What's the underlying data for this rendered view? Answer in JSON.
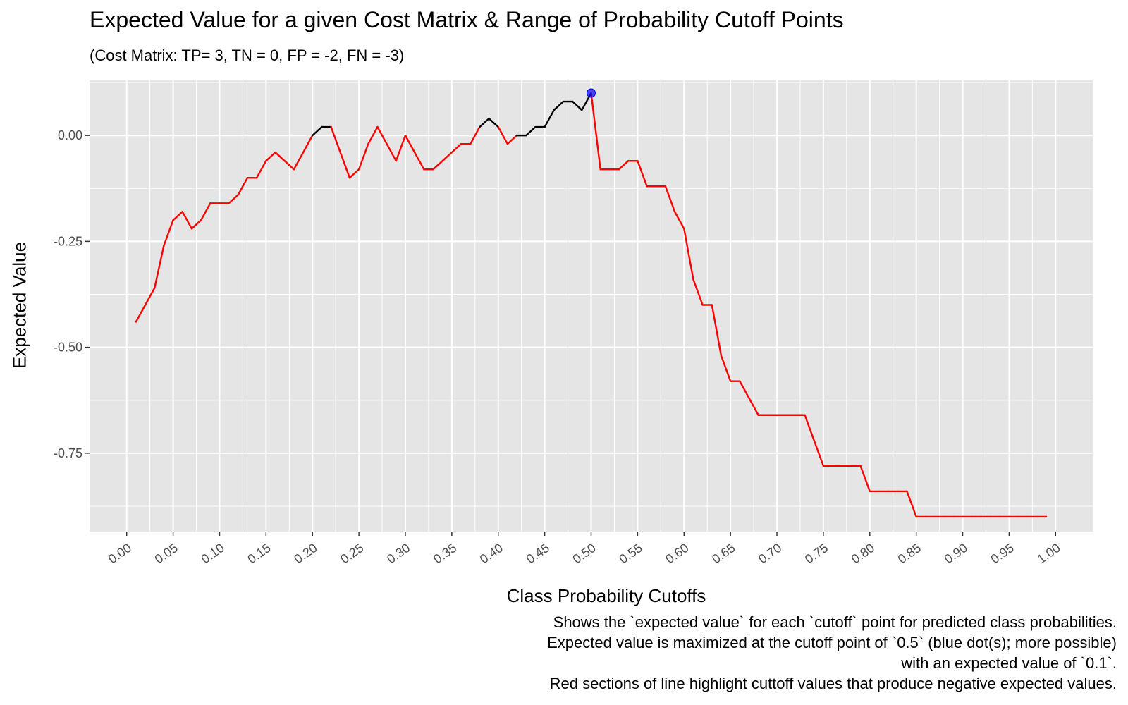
{
  "chart_data": {
    "type": "line",
    "title": "Expected Value for a given Cost Matrix & Range of Probability Cutoff Points",
    "subtitle": "(Cost Matrix: TP= 3, TN = 0, FP = -2, FN = -3)",
    "xlabel": "Class Probability Cutoffs",
    "ylabel": "Expected Value",
    "xlim": [
      -0.04,
      1.04
    ],
    "ylim": [
      -0.935,
      0.13
    ],
    "x_ticks": [
      "0.00",
      "0.05",
      "0.10",
      "0.15",
      "0.20",
      "0.25",
      "0.30",
      "0.35",
      "0.40",
      "0.45",
      "0.50",
      "0.55",
      "0.60",
      "0.65",
      "0.70",
      "0.75",
      "0.80",
      "0.85",
      "0.90",
      "0.95",
      "1.00"
    ],
    "y_ticks": [
      "0.00",
      "-0.25",
      "-0.50",
      "-0.75"
    ],
    "y_tick_values": [
      0,
      -0.25,
      -0.5,
      -0.75
    ],
    "grid": true,
    "series": [
      {
        "x": [
          0.01,
          0.02,
          0.03,
          0.04,
          0.05,
          0.06,
          0.07,
          0.08,
          0.09,
          0.1,
          0.11,
          0.12,
          0.13,
          0.14,
          0.15,
          0.16,
          0.17,
          0.18,
          0.19,
          0.2,
          0.21,
          0.22,
          0.23,
          0.24,
          0.25,
          0.26,
          0.27,
          0.28,
          0.29,
          0.3,
          0.31,
          0.32,
          0.33,
          0.34,
          0.35,
          0.36,
          0.37,
          0.38,
          0.39,
          0.4,
          0.41,
          0.42,
          0.43,
          0.44,
          0.45,
          0.46,
          0.47,
          0.48,
          0.49,
          0.5,
          0.51,
          0.52,
          0.53,
          0.54,
          0.55,
          0.56,
          0.57,
          0.58,
          0.59,
          0.6,
          0.61,
          0.62,
          0.63,
          0.64,
          0.65,
          0.66,
          0.67,
          0.68,
          0.69,
          0.7,
          0.71,
          0.72,
          0.73,
          0.74,
          0.75,
          0.76,
          0.77,
          0.78,
          0.79,
          0.8,
          0.81,
          0.82,
          0.83,
          0.84,
          0.85,
          0.86,
          0.87,
          0.88,
          0.89,
          0.9,
          0.91,
          0.92,
          0.93,
          0.94,
          0.95,
          0.96,
          0.97,
          0.98,
          0.99
        ],
        "values": [
          -0.44,
          -0.4,
          -0.36,
          -0.26,
          -0.2,
          -0.18,
          -0.22,
          -0.2,
          -0.16,
          -0.16,
          -0.16,
          -0.14,
          -0.1,
          -0.1,
          -0.06,
          -0.04,
          -0.06,
          -0.08,
          -0.04,
          0.0,
          0.02,
          0.02,
          -0.04,
          -0.1,
          -0.08,
          -0.02,
          0.02,
          -0.02,
          -0.06,
          0.0,
          -0.04,
          -0.08,
          -0.08,
          -0.06,
          -0.04,
          -0.02,
          -0.02,
          0.02,
          0.04,
          0.02,
          -0.02,
          0.0,
          0.0,
          0.02,
          0.02,
          0.06,
          0.08,
          0.08,
          0.06,
          0.1,
          -0.08,
          -0.08,
          -0.08,
          -0.06,
          -0.06,
          -0.12,
          -0.12,
          -0.12,
          -0.18,
          -0.22,
          -0.34,
          -0.4,
          -0.4,
          -0.52,
          -0.58,
          -0.58,
          -0.62,
          -0.66,
          -0.66,
          -0.66,
          -0.66,
          -0.66,
          -0.66,
          -0.72,
          -0.78,
          -0.78,
          -0.78,
          -0.78,
          -0.78,
          -0.84,
          -0.84,
          -0.84,
          -0.84,
          -0.84,
          -0.9,
          -0.9,
          -0.9,
          -0.9,
          -0.9,
          -0.9,
          -0.9,
          -0.9,
          -0.9,
          -0.9,
          -0.9,
          -0.9,
          -0.9,
          -0.9,
          -0.9
        ]
      }
    ],
    "highlight_point": {
      "x": 0.5,
      "y": 0.1
    },
    "colors": {
      "panel": "#e5e5e5",
      "grid": "#ffffff",
      "negative": "#ff0000",
      "positive": "#000000",
      "point": "#0000ff"
    },
    "caption": [
      "Shows the `expected value` for each `cutoff` point for predicted class probabilities.",
      "Expected value is maximized at the cutoff point of `0.5` (blue dot(s); more possible)",
      "with an expected value of `0.1`.",
      "Red sections of line highlight cuttoff values that produce negative expected values."
    ]
  }
}
